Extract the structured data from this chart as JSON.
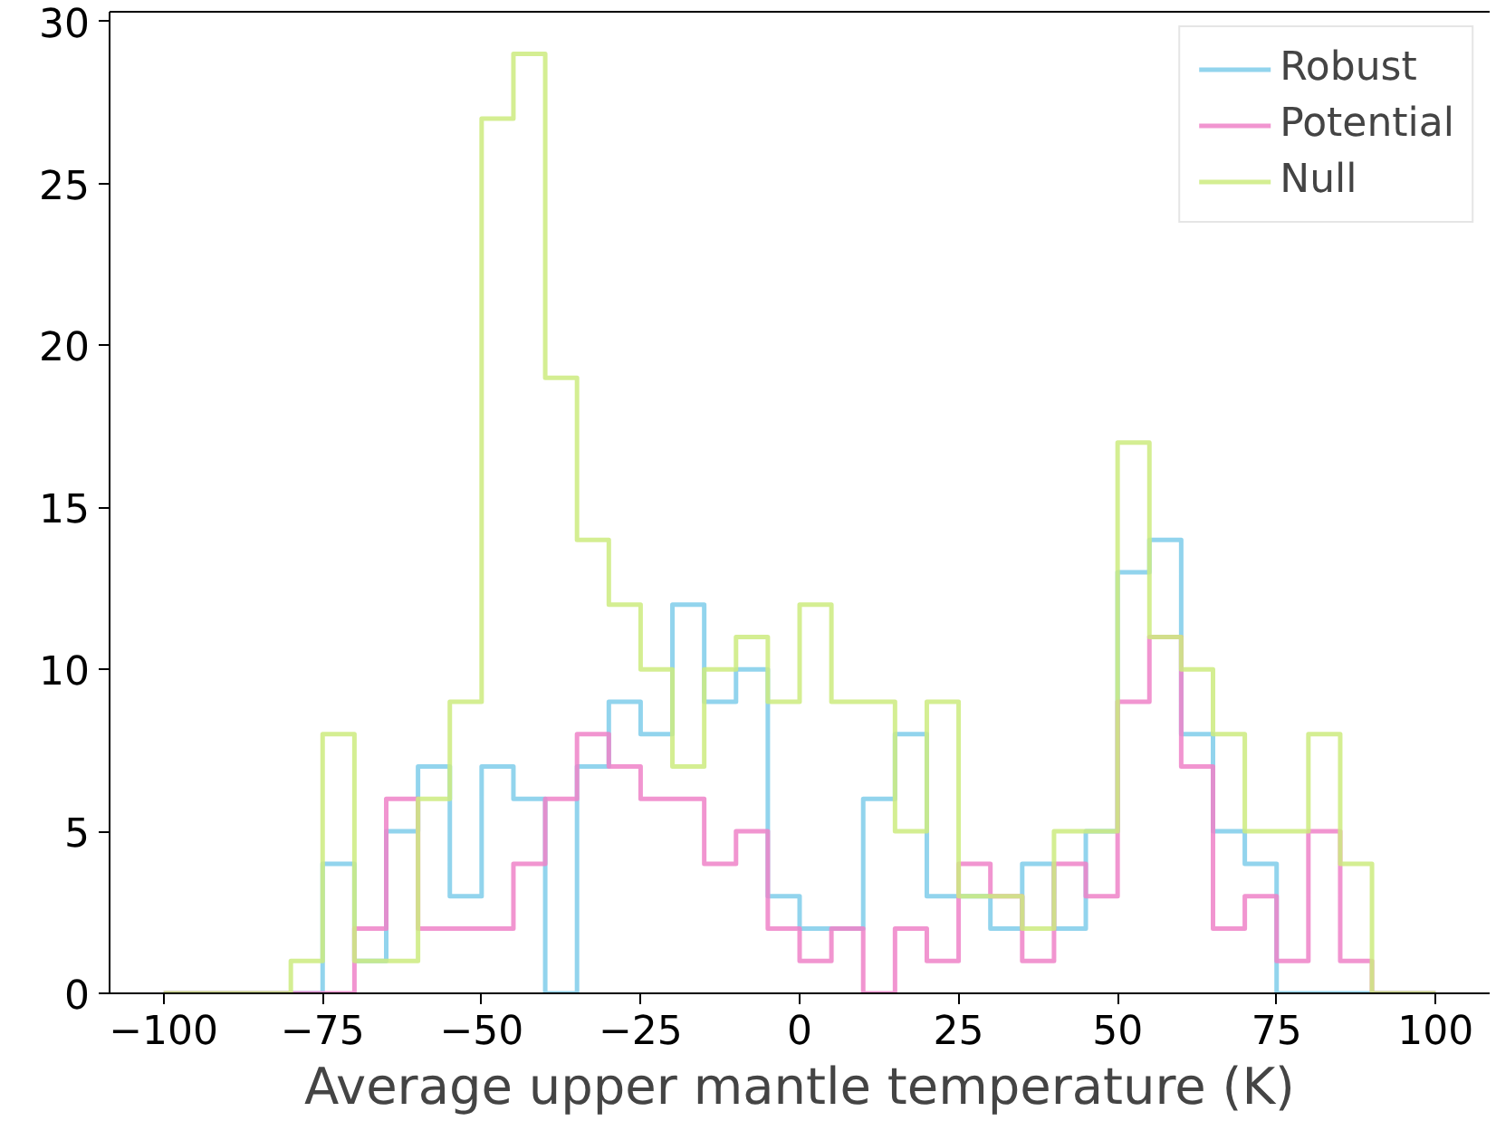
{
  "chart_data": {
    "type": "histogram",
    "xlabel": "Average upper mantle temperature (K)",
    "bins": [
      -100,
      -95,
      -90,
      -85,
      -80,
      -75,
      -70,
      -65,
      -60,
      -55,
      -50,
      -45,
      -40,
      -35,
      -30,
      -25,
      -20,
      -15,
      -10,
      -5,
      0,
      5,
      10,
      15,
      20,
      25,
      30,
      35,
      40,
      45,
      50,
      55,
      60,
      65,
      70,
      75,
      80,
      85,
      90,
      95,
      100
    ],
    "series": [
      {
        "name": "Robust",
        "color": "#7fcdea",
        "values": [
          0,
          0,
          0,
          0,
          0,
          4,
          1,
          5,
          7,
          3,
          7,
          6,
          0,
          7,
          9,
          8,
          12,
          9,
          10,
          3,
          2,
          2,
          6,
          8,
          3,
          3,
          2,
          4,
          2,
          5,
          13,
          14,
          8,
          5,
          4,
          0,
          0,
          0,
          0,
          0
        ]
      },
      {
        "name": "Potential",
        "color": "#ee82c8",
        "values": [
          0,
          0,
          0,
          0,
          0,
          0,
          2,
          6,
          2,
          2,
          2,
          4,
          6,
          8,
          7,
          6,
          6,
          4,
          5,
          2,
          1,
          2,
          0,
          2,
          1,
          4,
          3,
          1,
          4,
          3,
          9,
          11,
          7,
          2,
          3,
          1,
          5,
          1,
          0,
          0
        ]
      },
      {
        "name": "Null",
        "color": "#cdeb7f",
        "values": [
          0,
          0,
          0,
          0,
          1,
          8,
          1,
          1,
          6,
          9,
          27,
          29,
          19,
          14,
          12,
          10,
          7,
          10,
          11,
          9,
          12,
          9,
          9,
          5,
          9,
          3,
          3,
          2,
          5,
          5,
          17,
          11,
          10,
          8,
          5,
          5,
          8,
          4,
          0,
          0
        ]
      }
    ],
    "xlim": [
      -108.5,
      108.5
    ],
    "ylim": [
      0,
      30.3
    ],
    "xticks": [
      {
        "value": -100,
        "label": "−100"
      },
      {
        "value": -75,
        "label": "−75"
      },
      {
        "value": -50,
        "label": "−50"
      },
      {
        "value": -25,
        "label": "−25"
      },
      0,
      25,
      50,
      75,
      100
    ],
    "yticks": [
      0,
      5,
      10,
      15,
      20,
      25,
      30
    ],
    "grid": false,
    "legend": "top right"
  }
}
